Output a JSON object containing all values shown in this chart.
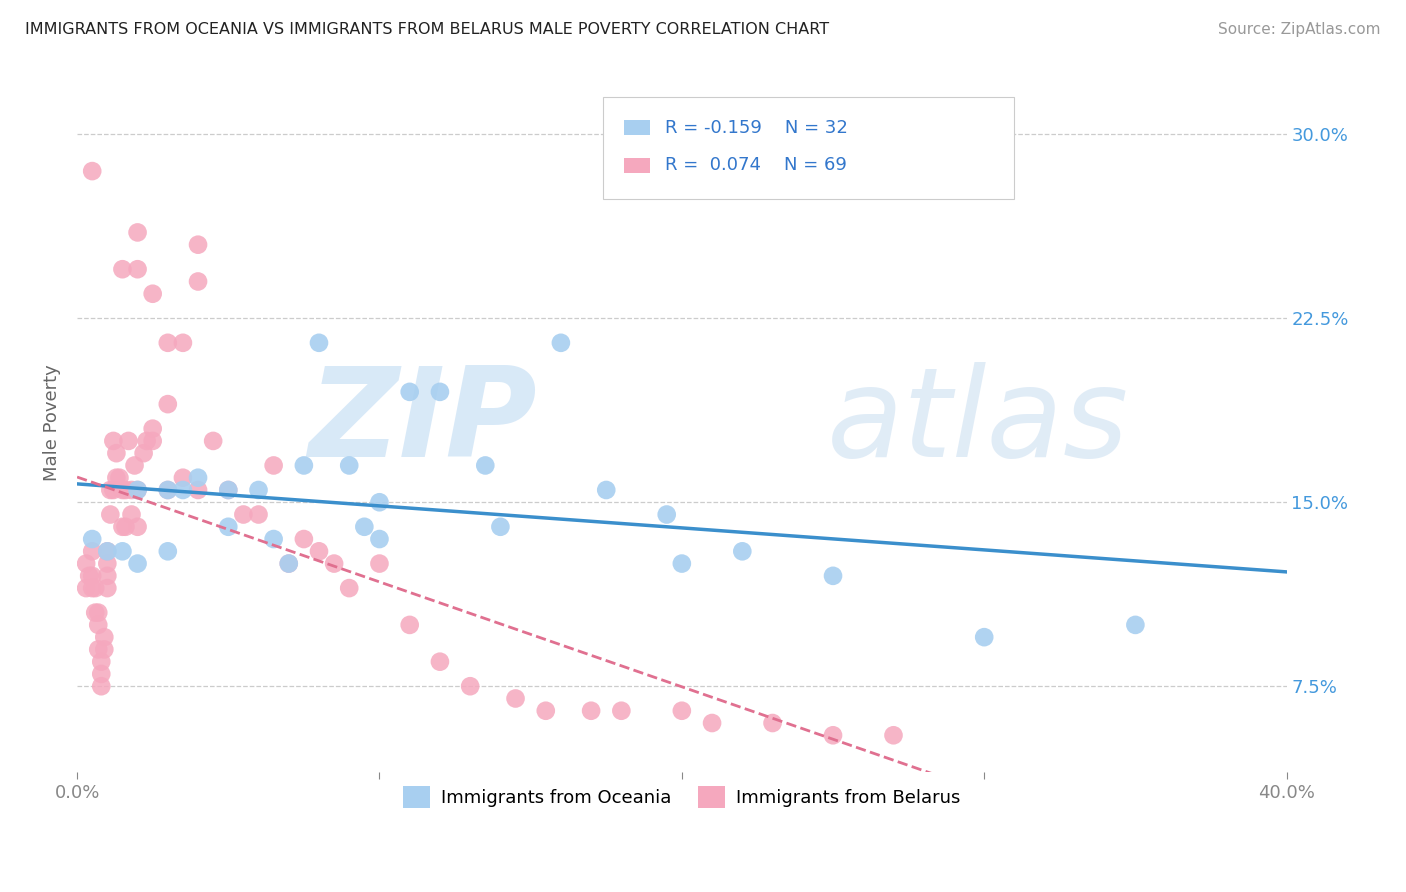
{
  "title": "IMMIGRANTS FROM OCEANIA VS IMMIGRANTS FROM BELARUS MALE POVERTY CORRELATION CHART",
  "source": "Source: ZipAtlas.com",
  "ylabel": "Male Poverty",
  "yticks": [
    0.075,
    0.15,
    0.225,
    0.3
  ],
  "ytick_labels": [
    "7.5%",
    "15.0%",
    "22.5%",
    "30.0%"
  ],
  "xlim": [
    0.0,
    0.4
  ],
  "ylim": [
    0.04,
    0.325
  ],
  "color_oceania": "#a8cff0",
  "color_belarus": "#f5a8be",
  "color_line_oceania": "#3b8fcc",
  "color_line_belarus": "#e07090",
  "background_color": "#ffffff",
  "oceania_x": [
    0.005,
    0.01,
    0.015,
    0.02,
    0.02,
    0.03,
    0.03,
    0.035,
    0.04,
    0.05,
    0.05,
    0.06,
    0.065,
    0.07,
    0.075,
    0.08,
    0.09,
    0.095,
    0.1,
    0.1,
    0.11,
    0.12,
    0.135,
    0.14,
    0.16,
    0.175,
    0.195,
    0.2,
    0.22,
    0.25,
    0.3,
    0.35
  ],
  "oceania_y": [
    0.135,
    0.13,
    0.13,
    0.155,
    0.125,
    0.13,
    0.155,
    0.155,
    0.16,
    0.155,
    0.14,
    0.155,
    0.135,
    0.125,
    0.165,
    0.215,
    0.165,
    0.14,
    0.15,
    0.135,
    0.195,
    0.195,
    0.165,
    0.14,
    0.215,
    0.155,
    0.145,
    0.125,
    0.13,
    0.12,
    0.095,
    0.1
  ],
  "belarus_x": [
    0.003,
    0.003,
    0.004,
    0.005,
    0.005,
    0.005,
    0.006,
    0.006,
    0.007,
    0.007,
    0.007,
    0.008,
    0.008,
    0.008,
    0.009,
    0.009,
    0.01,
    0.01,
    0.01,
    0.01,
    0.011,
    0.011,
    0.012,
    0.012,
    0.013,
    0.013,
    0.014,
    0.015,
    0.015,
    0.016,
    0.016,
    0.017,
    0.018,
    0.018,
    0.019,
    0.02,
    0.02,
    0.022,
    0.023,
    0.025,
    0.025,
    0.03,
    0.03,
    0.035,
    0.04,
    0.04,
    0.045,
    0.05,
    0.055,
    0.06,
    0.065,
    0.07,
    0.075,
    0.08,
    0.085,
    0.09,
    0.1,
    0.11,
    0.12,
    0.13,
    0.145,
    0.155,
    0.17,
    0.18,
    0.2,
    0.21,
    0.23,
    0.25,
    0.27
  ],
  "belarus_y": [
    0.125,
    0.115,
    0.12,
    0.13,
    0.12,
    0.115,
    0.115,
    0.105,
    0.105,
    0.1,
    0.09,
    0.085,
    0.08,
    0.075,
    0.095,
    0.09,
    0.13,
    0.125,
    0.12,
    0.115,
    0.155,
    0.145,
    0.155,
    0.175,
    0.17,
    0.16,
    0.16,
    0.155,
    0.14,
    0.155,
    0.14,
    0.175,
    0.155,
    0.145,
    0.165,
    0.155,
    0.14,
    0.17,
    0.175,
    0.18,
    0.175,
    0.19,
    0.155,
    0.16,
    0.24,
    0.155,
    0.175,
    0.155,
    0.145,
    0.145,
    0.165,
    0.125,
    0.135,
    0.13,
    0.125,
    0.115,
    0.125,
    0.1,
    0.085,
    0.075,
    0.07,
    0.065,
    0.065,
    0.065,
    0.065,
    0.06,
    0.06,
    0.055,
    0.055
  ],
  "belarus_high_x": [
    0.005,
    0.015,
    0.02,
    0.02,
    0.025,
    0.03,
    0.035,
    0.04
  ],
  "belarus_high_y": [
    0.285,
    0.245,
    0.245,
    0.26,
    0.235,
    0.215,
    0.215,
    0.255
  ]
}
